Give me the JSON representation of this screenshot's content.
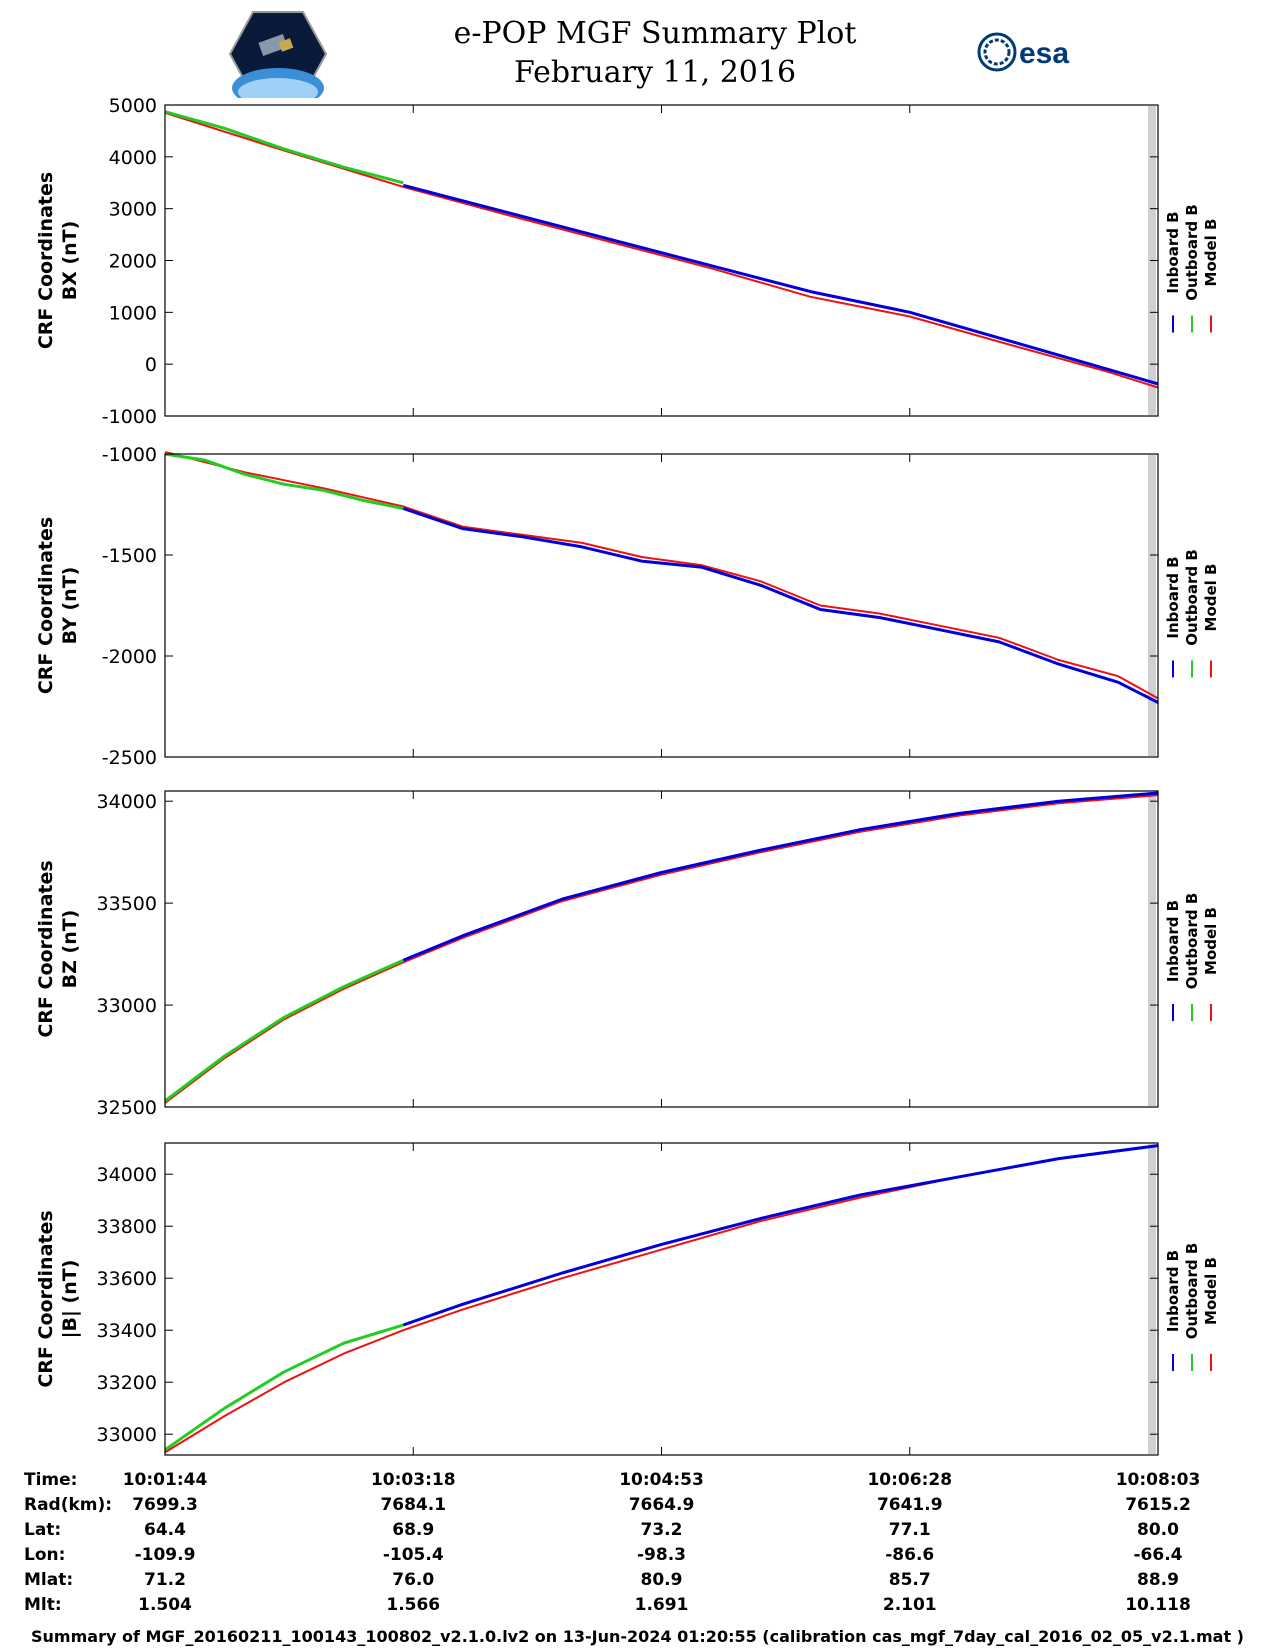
{
  "header": {
    "title": "e-POP MGF Summary Plot",
    "date": "February 11, 2016",
    "right_logo_text": "esa"
  },
  "legend": {
    "inboard": "Inboard B",
    "outboard": "Outboard B",
    "model": "Model B"
  },
  "colors": {
    "inboard": "#0000dd",
    "outboard": "#22cc22",
    "model": "#ee1111",
    "axis": "#000000",
    "band": "#d0d0d0"
  },
  "chart_data": [
    {
      "type": "line",
      "ylabel": [
        "CRF Coordinates",
        "BX (nT)"
      ],
      "ylim": [
        -1000,
        5000
      ],
      "yticks": [
        5000,
        4000,
        3000,
        2000,
        1000,
        0,
        -1000
      ],
      "xlim": [
        0,
        1
      ],
      "series": [
        {
          "name": "Outboard B",
          "x": [
            0,
            0.06,
            0.12,
            0.18,
            0.24
          ],
          "values": [
            4870,
            4550,
            4150,
            3800,
            3500
          ]
        },
        {
          "name": "Inboard B",
          "x": [
            0.24,
            0.35,
            0.45,
            0.55,
            0.65,
            0.75,
            0.85,
            0.95,
            1.0
          ],
          "values": [
            3450,
            2900,
            2400,
            1900,
            1400,
            1000,
            450,
            -100,
            -380
          ]
        },
        {
          "name": "Model B",
          "x": [
            0,
            0.12,
            0.24,
            0.35,
            0.45,
            0.55,
            0.65,
            0.75,
            0.85,
            0.95,
            1.0
          ],
          "values": [
            4850,
            4120,
            3420,
            2850,
            2350,
            1850,
            1300,
            920,
            380,
            -150,
            -450
          ]
        }
      ]
    },
    {
      "type": "line",
      "ylabel": [
        "CRF Coordinates",
        "BY (nT)"
      ],
      "ylim": [
        -2500,
        -1000
      ],
      "yticks": [
        -1000,
        -1500,
        -2000,
        -2500
      ],
      "xlim": [
        0,
        1
      ],
      "series": [
        {
          "name": "Outboard B",
          "x": [
            0,
            0.04,
            0.08,
            0.12,
            0.16,
            0.2,
            0.24
          ],
          "values": [
            -1000,
            -1030,
            -1100,
            -1150,
            -1180,
            -1230,
            -1270
          ]
        },
        {
          "name": "Inboard B",
          "x": [
            0.24,
            0.3,
            0.36,
            0.42,
            0.48,
            0.54,
            0.6,
            0.66,
            0.72,
            0.78,
            0.84,
            0.9,
            0.96,
            1.0
          ],
          "values": [
            -1270,
            -1370,
            -1410,
            -1460,
            -1530,
            -1560,
            -1650,
            -1770,
            -1810,
            -1870,
            -1930,
            -2040,
            -2130,
            -2230
          ]
        },
        {
          "name": "Model B",
          "x": [
            0,
            0.08,
            0.16,
            0.24,
            0.3,
            0.36,
            0.42,
            0.48,
            0.54,
            0.6,
            0.66,
            0.72,
            0.78,
            0.84,
            0.9,
            0.96,
            1.0
          ],
          "values": [
            -990,
            -1090,
            -1170,
            -1260,
            -1360,
            -1400,
            -1440,
            -1510,
            -1550,
            -1630,
            -1750,
            -1790,
            -1850,
            -1910,
            -2020,
            -2100,
            -2210
          ]
        }
      ]
    },
    {
      "type": "line",
      "ylabel": [
        "CRF Coordinates",
        "BZ (nT)"
      ],
      "ylim": [
        32500,
        34050
      ],
      "yticks": [
        34000,
        33500,
        33000,
        32500
      ],
      "xlim": [
        0,
        1
      ],
      "series": [
        {
          "name": "Outboard B",
          "x": [
            0,
            0.06,
            0.12,
            0.18,
            0.24
          ],
          "values": [
            32530,
            32750,
            32940,
            33090,
            33220
          ]
        },
        {
          "name": "Inboard B",
          "x": [
            0.24,
            0.3,
            0.4,
            0.5,
            0.6,
            0.7,
            0.8,
            0.9,
            1.0
          ],
          "values": [
            33220,
            33340,
            33520,
            33650,
            33760,
            33860,
            33940,
            34000,
            34040
          ]
        },
        {
          "name": "Model B",
          "x": [
            0,
            0.06,
            0.12,
            0.18,
            0.24,
            0.3,
            0.4,
            0.5,
            0.6,
            0.7,
            0.8,
            0.9,
            1.0
          ],
          "values": [
            32520,
            32740,
            32930,
            33080,
            33210,
            33330,
            33510,
            33640,
            33750,
            33850,
            33930,
            33990,
            34030
          ]
        }
      ]
    },
    {
      "type": "line",
      "ylabel": [
        "CRF Coordinates",
        "|B| (nT)"
      ],
      "ylim": [
        32920,
        34120
      ],
      "yticks": [
        34000,
        33800,
        33600,
        33400,
        33200,
        33000
      ],
      "xlim": [
        0,
        1
      ],
      "series": [
        {
          "name": "Outboard B",
          "x": [
            0,
            0.06,
            0.12,
            0.18,
            0.24
          ],
          "values": [
            32940,
            33100,
            33240,
            33350,
            33420
          ]
        },
        {
          "name": "Inboard B",
          "x": [
            0.24,
            0.3,
            0.4,
            0.5,
            0.6,
            0.7,
            0.8,
            0.9,
            1.0
          ],
          "values": [
            33420,
            33500,
            33620,
            33730,
            33830,
            33920,
            33990,
            34060,
            34110
          ]
        },
        {
          "name": "Model B",
          "x": [
            0,
            0.06,
            0.12,
            0.18,
            0.24,
            0.3,
            0.4,
            0.5,
            0.6,
            0.7,
            0.8,
            0.9,
            1.0
          ],
          "values": [
            32930,
            33070,
            33200,
            33310,
            33400,
            33480,
            33600,
            33710,
            33820,
            33910,
            33990,
            34060,
            34110
          ]
        }
      ]
    }
  ],
  "info_table": {
    "rows": [
      {
        "label": "Time:",
        "values": [
          "10:01:44",
          "10:03:18",
          "10:04:53",
          "10:06:28",
          "10:08:03"
        ]
      },
      {
        "label": "Rad(km):",
        "values": [
          "7699.3",
          "7684.1",
          "7664.9",
          "7641.9",
          "7615.2"
        ]
      },
      {
        "label": "Lat:",
        "values": [
          "64.4",
          "68.9",
          "73.2",
          "77.1",
          "80.0"
        ]
      },
      {
        "label": "Lon:",
        "values": [
          "-109.9",
          "-105.4",
          "-98.3",
          "-86.6",
          "-66.4"
        ]
      },
      {
        "label": "Mlat:",
        "values": [
          "71.2",
          "76.0",
          "80.9",
          "85.7",
          "88.9"
        ]
      },
      {
        "label": "Mlt:",
        "values": [
          "1.504",
          "1.566",
          "1.691",
          "2.101",
          "10.118"
        ]
      }
    ]
  },
  "footer": "Summary of MGF_20160211_100143_100802_v2.1.0.lv2 on 13-Jun-2024 01:20:55 (calibration cas_mgf_7day_cal_2016_02_05_v2.1.mat )"
}
